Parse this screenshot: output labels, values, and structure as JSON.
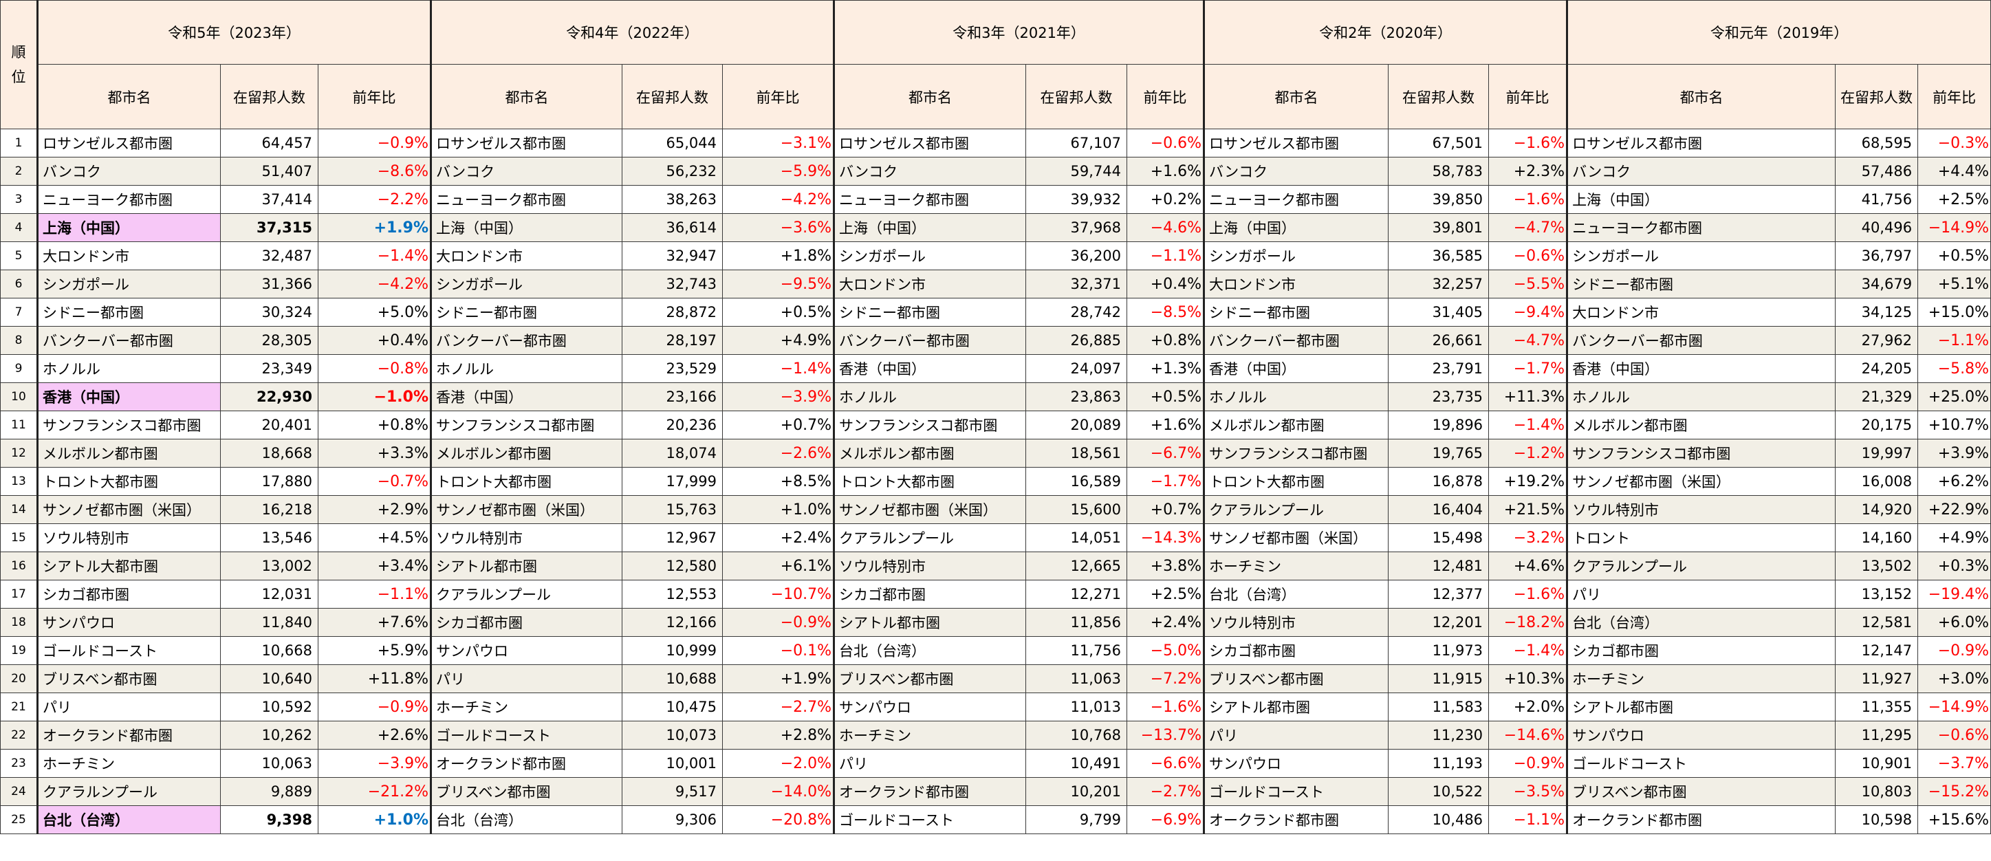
{
  "header": {
    "rank_label": "順位",
    "city_label": "都市名",
    "residents_label": "在留邦人数",
    "yoy_label": "前年比",
    "years": [
      "令和5年（2023年）",
      "令和4年（2022年）",
      "令和3年（2021年）",
      "令和2年（2020年）",
      "令和元年（2019年）"
    ]
  },
  "highlight_color": "#f7c8f7",
  "negative_color": "#ff0000",
  "positive_highlight_color": "#0070c0",
  "rows": [
    {
      "rank": "1",
      "cells": [
        {
          "city": "ロサンゼルス都市圏",
          "count": "64,457",
          "yoy": "−0.9%"
        },
        {
          "city": "ロサンゼルス都市圏",
          "count": "65,044",
          "yoy": "−3.1%"
        },
        {
          "city": "ロサンゼルス都市圏",
          "count": "67,107",
          "yoy": "−0.6%"
        },
        {
          "city": "ロサンゼルス都市圏",
          "count": "67,501",
          "yoy": "−1.6%"
        },
        {
          "city": "ロサンゼルス都市圏",
          "count": "68,595",
          "yoy": "−0.3%"
        }
      ]
    },
    {
      "rank": "2",
      "cells": [
        {
          "city": "バンコク",
          "count": "51,407",
          "yoy": "−8.6%"
        },
        {
          "city": "バンコク",
          "count": "56,232",
          "yoy": "−5.9%"
        },
        {
          "city": "バンコク",
          "count": "59,744",
          "yoy": "+1.6%"
        },
        {
          "city": "バンコク",
          "count": "58,783",
          "yoy": "+2.3%"
        },
        {
          "city": "バンコク",
          "count": "57,486",
          "yoy": "+4.4%"
        }
      ]
    },
    {
      "rank": "3",
      "cells": [
        {
          "city": "ニューヨーク都市圏",
          "count": "37,414",
          "yoy": "−2.2%"
        },
        {
          "city": "ニューヨーク都市圏",
          "count": "38,263",
          "yoy": "−4.2%"
        },
        {
          "city": "ニューヨーク都市圏",
          "count": "39,932",
          "yoy": "+0.2%"
        },
        {
          "city": "ニューヨーク都市圏",
          "count": "39,850",
          "yoy": "−1.6%"
        },
        {
          "city": "上海（中国）",
          "count": "41,756",
          "yoy": "+2.5%"
        }
      ]
    },
    {
      "rank": "4",
      "cells": [
        {
          "city": "上海（中国）",
          "count": "37,315",
          "yoy": "+1.9%",
          "highlight": true
        },
        {
          "city": "上海（中国）",
          "count": "36,614",
          "yoy": "−3.6%"
        },
        {
          "city": "上海（中国）",
          "count": "37,968",
          "yoy": "−4.6%"
        },
        {
          "city": "上海（中国）",
          "count": "39,801",
          "yoy": "−4.7%"
        },
        {
          "city": "ニューヨーク都市圏",
          "count": "40,496",
          "yoy": "−14.9%"
        }
      ]
    },
    {
      "rank": "5",
      "cells": [
        {
          "city": "大ロンドン市",
          "count": "32,487",
          "yoy": "−1.4%"
        },
        {
          "city": "大ロンドン市",
          "count": "32,947",
          "yoy": "+1.8%"
        },
        {
          "city": "シンガポール",
          "count": "36,200",
          "yoy": "−1.1%"
        },
        {
          "city": "シンガポール",
          "count": "36,585",
          "yoy": "−0.6%"
        },
        {
          "city": "シンガポール",
          "count": "36,797",
          "yoy": "+0.5%"
        }
      ]
    },
    {
      "rank": "6",
      "cells": [
        {
          "city": "シンガポール",
          "count": "31,366",
          "yoy": "−4.2%"
        },
        {
          "city": "シンガポール",
          "count": "32,743",
          "yoy": "−9.5%"
        },
        {
          "city": "大ロンドン市",
          "count": "32,371",
          "yoy": "+0.4%"
        },
        {
          "city": "大ロンドン市",
          "count": "32,257",
          "yoy": "−5.5%"
        },
        {
          "city": "シドニー都市圏",
          "count": "34,679",
          "yoy": "+5.1%"
        }
      ]
    },
    {
      "rank": "7",
      "cells": [
        {
          "city": "シドニー都市圏",
          "count": "30,324",
          "yoy": "+5.0%"
        },
        {
          "city": "シドニー都市圏",
          "count": "28,872",
          "yoy": "+0.5%"
        },
        {
          "city": "シドニー都市圏",
          "count": "28,742",
          "yoy": "−8.5%"
        },
        {
          "city": "シドニー都市圏",
          "count": "31,405",
          "yoy": "−9.4%"
        },
        {
          "city": "大ロンドン市",
          "count": "34,125",
          "yoy": "+15.0%"
        }
      ]
    },
    {
      "rank": "8",
      "cells": [
        {
          "city": "バンクーバー都市圏",
          "count": "28,305",
          "yoy": "+0.4%"
        },
        {
          "city": "バンクーバー都市圏",
          "count": "28,197",
          "yoy": "+4.9%"
        },
        {
          "city": "バンクーバー都市圏",
          "count": "26,885",
          "yoy": "+0.8%"
        },
        {
          "city": "バンクーバー都市圏",
          "count": "26,661",
          "yoy": "−4.7%"
        },
        {
          "city": "バンクーバー都市圏",
          "count": "27,962",
          "yoy": "−1.1%"
        }
      ]
    },
    {
      "rank": "9",
      "cells": [
        {
          "city": "ホノルル",
          "count": "23,349",
          "yoy": "−0.8%"
        },
        {
          "city": "ホノルル",
          "count": "23,529",
          "yoy": "−1.4%"
        },
        {
          "city": "香港（中国）",
          "count": "24,097",
          "yoy": "+1.3%"
        },
        {
          "city": "香港（中国）",
          "count": "23,791",
          "yoy": "−1.7%"
        },
        {
          "city": "香港（中国）",
          "count": "24,205",
          "yoy": "−5.8%"
        }
      ]
    },
    {
      "rank": "10",
      "cells": [
        {
          "city": "香港（中国）",
          "count": "22,930",
          "yoy": "−1.0%",
          "highlight": true
        },
        {
          "city": "香港（中国）",
          "count": "23,166",
          "yoy": "−3.9%"
        },
        {
          "city": "ホノルル",
          "count": "23,863",
          "yoy": "+0.5%"
        },
        {
          "city": "ホノルル",
          "count": "23,735",
          "yoy": "+11.3%"
        },
        {
          "city": "ホノルル",
          "count": "21,329",
          "yoy": "+25.0%"
        }
      ]
    },
    {
      "rank": "11",
      "cells": [
        {
          "city": "サンフランシスコ都市圏",
          "count": "20,401",
          "yoy": "+0.8%"
        },
        {
          "city": "サンフランシスコ都市圏",
          "count": "20,236",
          "yoy": "+0.7%"
        },
        {
          "city": "サンフランシスコ都市圏",
          "count": "20,089",
          "yoy": "+1.6%"
        },
        {
          "city": "メルボルン都市圏",
          "count": "19,896",
          "yoy": "−1.4%"
        },
        {
          "city": "メルボルン都市圏",
          "count": "20,175",
          "yoy": "+10.7%"
        }
      ]
    },
    {
      "rank": "12",
      "cells": [
        {
          "city": "メルボルン都市圏",
          "count": "18,668",
          "yoy": "+3.3%"
        },
        {
          "city": "メルボルン都市圏",
          "count": "18,074",
          "yoy": "−2.6%"
        },
        {
          "city": "メルボルン都市圏",
          "count": "18,561",
          "yoy": "−6.7%"
        },
        {
          "city": "サンフランシスコ都市圏",
          "count": "19,765",
          "yoy": "−1.2%"
        },
        {
          "city": "サンフランシスコ都市圏",
          "count": "19,997",
          "yoy": "+3.9%"
        }
      ]
    },
    {
      "rank": "13",
      "cells": [
        {
          "city": "トロント大都市圏",
          "count": "17,880",
          "yoy": "−0.7%"
        },
        {
          "city": "トロント大都市圏",
          "count": "17,999",
          "yoy": "+8.5%"
        },
        {
          "city": "トロント大都市圏",
          "count": "16,589",
          "yoy": "−1.7%"
        },
        {
          "city": "トロント大都市圏",
          "count": "16,878",
          "yoy": "+19.2%"
        },
        {
          "city": "サンノゼ都市圏（米国）",
          "count": "16,008",
          "yoy": "+6.2%"
        }
      ]
    },
    {
      "rank": "14",
      "cells": [
        {
          "city": "サンノゼ都市圏（米国）",
          "count": "16,218",
          "yoy": "+2.9%"
        },
        {
          "city": "サンノゼ都市圏（米国）",
          "count": "15,763",
          "yoy": "+1.0%"
        },
        {
          "city": "サンノゼ都市圏（米国）",
          "count": "15,600",
          "yoy": "+0.7%"
        },
        {
          "city": "クアラルンプール",
          "count": "16,404",
          "yoy": "+21.5%"
        },
        {
          "city": "ソウル特別市",
          "count": "14,920",
          "yoy": "+22.9%"
        }
      ]
    },
    {
      "rank": "15",
      "cells": [
        {
          "city": "ソウル特別市",
          "count": "13,546",
          "yoy": "+4.5%"
        },
        {
          "city": "ソウル特別市",
          "count": "12,967",
          "yoy": "+2.4%"
        },
        {
          "city": "クアラルンプール",
          "count": "14,051",
          "yoy": "−14.3%"
        },
        {
          "city": "サンノゼ都市圏（米国）",
          "count": "15,498",
          "yoy": "−3.2%"
        },
        {
          "city": "トロント",
          "count": "14,160",
          "yoy": "+4.9%"
        }
      ]
    },
    {
      "rank": "16",
      "cells": [
        {
          "city": "シアトル大都市圏",
          "count": "13,002",
          "yoy": "+3.4%"
        },
        {
          "city": "シアトル都市圏",
          "count": "12,580",
          "yoy": "+6.1%"
        },
        {
          "city": "ソウル特別市",
          "count": "12,665",
          "yoy": "+3.8%"
        },
        {
          "city": "ホーチミン",
          "count": "12,481",
          "yoy": "+4.6%"
        },
        {
          "city": "クアラルンプール",
          "count": "13,502",
          "yoy": "+0.3%"
        }
      ]
    },
    {
      "rank": "17",
      "cells": [
        {
          "city": "シカゴ都市圏",
          "count": "12,031",
          "yoy": "−1.1%"
        },
        {
          "city": "クアラルンプール",
          "count": "12,553",
          "yoy": "−10.7%"
        },
        {
          "city": "シカゴ都市圏",
          "count": "12,271",
          "yoy": "+2.5%"
        },
        {
          "city": "台北（台湾）",
          "count": "12,377",
          "yoy": "−1.6%"
        },
        {
          "city": "パリ",
          "count": "13,152",
          "yoy": "−19.4%"
        }
      ]
    },
    {
      "rank": "18",
      "cells": [
        {
          "city": "サンパウロ",
          "count": "11,840",
          "yoy": "+7.6%"
        },
        {
          "city": "シカゴ都市圏",
          "count": "12,166",
          "yoy": "−0.9%"
        },
        {
          "city": "シアトル都市圏",
          "count": "11,856",
          "yoy": "+2.4%"
        },
        {
          "city": "ソウル特別市",
          "count": "12,201",
          "yoy": "−18.2%"
        },
        {
          "city": "台北（台湾）",
          "count": "12,581",
          "yoy": "+6.0%"
        }
      ]
    },
    {
      "rank": "19",
      "cells": [
        {
          "city": "ゴールドコースト",
          "count": "10,668",
          "yoy": "+5.9%"
        },
        {
          "city": "サンパウロ",
          "count": "10,999",
          "yoy": "−0.1%"
        },
        {
          "city": "台北（台湾）",
          "count": "11,756",
          "yoy": "−5.0%"
        },
        {
          "city": "シカゴ都市圏",
          "count": "11,973",
          "yoy": "−1.4%"
        },
        {
          "city": "シカゴ都市圏",
          "count": "12,147",
          "yoy": "−0.9%"
        }
      ]
    },
    {
      "rank": "20",
      "cells": [
        {
          "city": "ブリスベン都市圏",
          "count": "10,640",
          "yoy": "+11.8%"
        },
        {
          "city": "パリ",
          "count": "10,688",
          "yoy": "+1.9%"
        },
        {
          "city": "ブリスベン都市圏",
          "count": "11,063",
          "yoy": "−7.2%"
        },
        {
          "city": "ブリスベン都市圏",
          "count": "11,915",
          "yoy": "+10.3%"
        },
        {
          "city": "ホーチミン",
          "count": "11,927",
          "yoy": "+3.0%"
        }
      ]
    },
    {
      "rank": "21",
      "cells": [
        {
          "city": "パリ",
          "count": "10,592",
          "yoy": "−0.9%"
        },
        {
          "city": "ホーチミン",
          "count": "10,475",
          "yoy": "−2.7%"
        },
        {
          "city": "サンパウロ",
          "count": "11,013",
          "yoy": "−1.6%"
        },
        {
          "city": "シアトル都市圏",
          "count": "11,583",
          "yoy": "+2.0%"
        },
        {
          "city": "シアトル都市圏",
          "count": "11,355",
          "yoy": "−14.9%"
        }
      ]
    },
    {
      "rank": "22",
      "cells": [
        {
          "city": "オークランド都市圏",
          "count": "10,262",
          "yoy": "+2.6%"
        },
        {
          "city": "ゴールドコースト",
          "count": "10,073",
          "yoy": "+2.8%"
        },
        {
          "city": "ホーチミン",
          "count": "10,768",
          "yoy": "−13.7%"
        },
        {
          "city": "パリ",
          "count": "11,230",
          "yoy": "−14.6%"
        },
        {
          "city": "サンパウロ",
          "count": "11,295",
          "yoy": "−0.6%"
        }
      ]
    },
    {
      "rank": "23",
      "cells": [
        {
          "city": "ホーチミン",
          "count": "10,063",
          "yoy": "−3.9%"
        },
        {
          "city": "オークランド都市圏",
          "count": "10,001",
          "yoy": "−2.0%"
        },
        {
          "city": "パリ",
          "count": "10,491",
          "yoy": "−6.6%"
        },
        {
          "city": "サンパウロ",
          "count": "11,193",
          "yoy": "−0.9%"
        },
        {
          "city": "ゴールドコースト",
          "count": "10,901",
          "yoy": "−3.7%"
        }
      ]
    },
    {
      "rank": "24",
      "cells": [
        {
          "city": "クアラルンプール",
          "count": "9,889",
          "yoy": "−21.2%"
        },
        {
          "city": "ブリスベン都市圏",
          "count": "9,517",
          "yoy": "−14.0%"
        },
        {
          "city": "オークランド都市圏",
          "count": "10,201",
          "yoy": "−2.7%"
        },
        {
          "city": "ゴールドコースト",
          "count": "10,522",
          "yoy": "−3.5%"
        },
        {
          "city": "ブリスベン都市圏",
          "count": "10,803",
          "yoy": "−15.2%"
        }
      ]
    },
    {
      "rank": "25",
      "cells": [
        {
          "city": "台北（台湾）",
          "count": "9,398",
          "yoy": "+1.0%",
          "highlight": true
        },
        {
          "city": "台北（台湾）",
          "count": "9,306",
          "yoy": "−20.8%"
        },
        {
          "city": "ゴールドコースト",
          "count": "9,799",
          "yoy": "−6.9%"
        },
        {
          "city": "オークランド都市圏",
          "count": "10,486",
          "yoy": "−1.1%"
        },
        {
          "city": "オークランド都市圏",
          "count": "10,598",
          "yoy": "+15.6%"
        }
      ]
    }
  ]
}
